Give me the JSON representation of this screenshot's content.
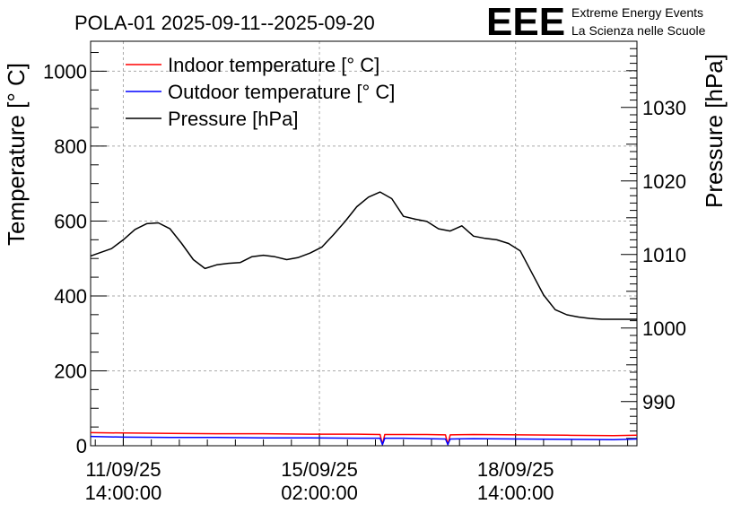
{
  "chart_data": {
    "type": "line",
    "title": "POLA-01 2025-09-11--2025-09-20",
    "logo": {
      "text": "EEE",
      "line1": "Extreme Energy Events",
      "line2": "La Scienza nelle Scuole",
      "color": "#1a1aff"
    },
    "ylabel_left": "Temperature [° C]",
    "ylabel_right": "Pressure [hPa]",
    "ylim_left": [
      0,
      1080
    ],
    "ylim_right": [
      984,
      1039
    ],
    "left_ticks": [
      "0",
      "200",
      "400",
      "600",
      "800",
      "1000"
    ],
    "left_tick_values": [
      0,
      200,
      400,
      600,
      800,
      1000
    ],
    "right_ticks": [
      "990",
      "1000",
      "1010",
      "1020",
      "1030"
    ],
    "right_tick_values": [
      990,
      1000,
      1010,
      1020,
      1030
    ],
    "xlim_hours": [
      -14,
      220
    ],
    "x_ticks": [
      {
        "hours": 0,
        "line1": "11/09/25",
        "line2": "14:00:00"
      },
      {
        "hours": 84,
        "line1": "15/09/25",
        "line2": "02:00:00"
      },
      {
        "hours": 168,
        "line1": "18/09/25",
        "line2": "14:00:00"
      }
    ],
    "grid": true,
    "legend": {
      "position": "top-left",
      "entries": [
        {
          "label": "Indoor temperature [° C]",
          "color": "#ff0000"
        },
        {
          "label": "Outdoor temperature [° C]",
          "color": "#0000ff"
        },
        {
          "label": "Pressure [hPa]",
          "color": "#000000"
        }
      ]
    },
    "series": [
      {
        "name": "Indoor temperature [° C]",
        "axis": "left",
        "color": "#ff0000",
        "x": [
          -14,
          0,
          20,
          40,
          60,
          80,
          100,
          110,
          111,
          112,
          120,
          130,
          138,
          139,
          140,
          150,
          170,
          190,
          210,
          220
        ],
        "y": [
          35,
          34,
          33,
          32,
          32,
          31,
          31,
          30,
          3,
          30,
          30,
          30,
          29,
          3,
          29,
          30,
          29,
          28,
          27,
          28
        ]
      },
      {
        "name": "Outdoor temperature [° C]",
        "axis": "left",
        "color": "#0000ff",
        "x": [
          -14,
          0,
          20,
          40,
          60,
          80,
          100,
          110,
          111,
          112,
          120,
          130,
          138,
          139,
          140,
          150,
          170,
          190,
          210,
          220
        ],
        "y": [
          25,
          23,
          22,
          22,
          21,
          21,
          20,
          20,
          3,
          20,
          20,
          19,
          18,
          3,
          18,
          19,
          18,
          17,
          16,
          18
        ]
      },
      {
        "name": "Pressure [hPa]",
        "axis": "right",
        "color": "#000000",
        "x": [
          -14,
          -5,
          0,
          5,
          10,
          15,
          20,
          25,
          30,
          35,
          40,
          45,
          50,
          55,
          60,
          65,
          70,
          75,
          80,
          85,
          90,
          95,
          100,
          105,
          110,
          115,
          120,
          125,
          130,
          135,
          140,
          145,
          150,
          155,
          160,
          165,
          170,
          175,
          180,
          185,
          190,
          195,
          200,
          205,
          210,
          215,
          220
        ],
        "y": [
          1009.8,
          1010.8,
          1012,
          1013.4,
          1014.2,
          1014.3,
          1013.5,
          1011.5,
          1009.3,
          1008.1,
          1008.6,
          1008.8,
          1008.9,
          1009.7,
          1009.9,
          1009.7,
          1009.3,
          1009.6,
          1010.2,
          1011.0,
          1012.7,
          1014.5,
          1016.5,
          1017.8,
          1018.5,
          1017.6,
          1015.2,
          1014.8,
          1014.5,
          1013.5,
          1013.2,
          1013.9,
          1012.5,
          1012.2,
          1012.0,
          1011.5,
          1010.5,
          1007.5,
          1004.5,
          1002.5,
          1001.8,
          1001.5,
          1001.3,
          1001.2,
          1001.2,
          1001.2,
          1001.2
        ]
      }
    ]
  }
}
